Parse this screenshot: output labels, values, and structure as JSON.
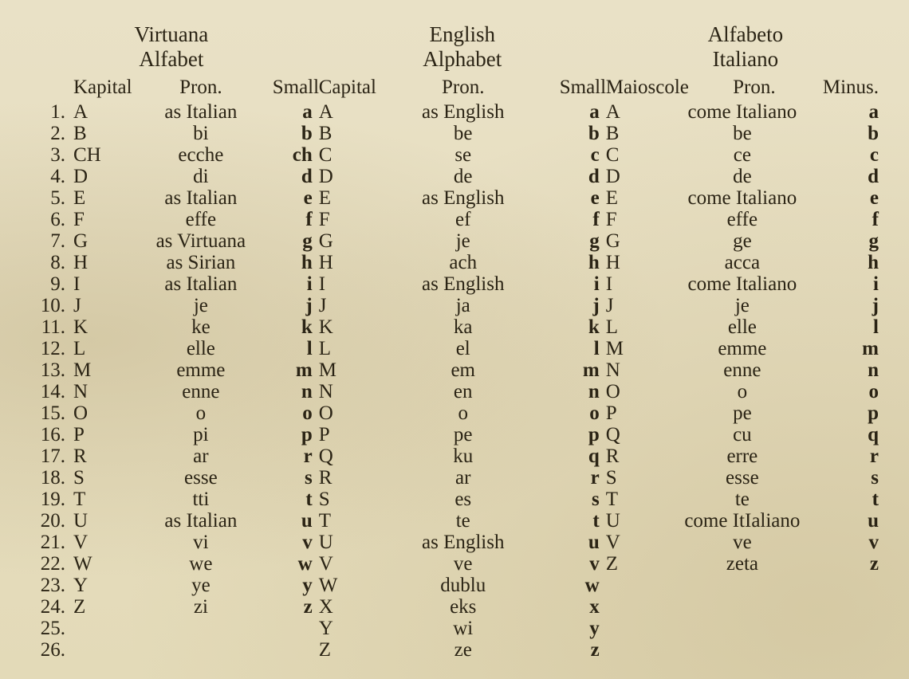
{
  "colors": {
    "background": "#e8e0c4",
    "text": "#2b2415"
  },
  "typography": {
    "family": "Times New Roman",
    "title_size_pt": 20,
    "body_size_pt": 18
  },
  "sections": {
    "virtuana": {
      "title_line1": "Virtuana",
      "title_line2": "Alfabet",
      "headers": {
        "cap": "Kapital",
        "pron": "Pron.",
        "small": "Small"
      },
      "rows": [
        {
          "n": "1.",
          "cap": "A",
          "pron": "as Italian",
          "small": "a"
        },
        {
          "n": "2.",
          "cap": "B",
          "pron": "bi",
          "small": "b"
        },
        {
          "n": "3.",
          "cap": "CH",
          "pron": "ecche",
          "small": "ch"
        },
        {
          "n": "4.",
          "cap": "D",
          "pron": "di",
          "small": "d"
        },
        {
          "n": "5.",
          "cap": "E",
          "pron": "as Italian",
          "small": "e"
        },
        {
          "n": "6.",
          "cap": "F",
          "pron": "effe",
          "small": "f"
        },
        {
          "n": "7.",
          "cap": "G",
          "pron": "as Virtuana",
          "small": "g"
        },
        {
          "n": "8.",
          "cap": "H",
          "pron": "as Sirian",
          "small": "h"
        },
        {
          "n": "9.",
          "cap": "I",
          "pron": "as Italian",
          "small": "i"
        },
        {
          "n": "10.",
          "cap": "J",
          "pron": "je",
          "small": "j"
        },
        {
          "n": "11.",
          "cap": "K",
          "pron": "ke",
          "small": "k"
        },
        {
          "n": "12.",
          "cap": "L",
          "pron": "elle",
          "small": "l"
        },
        {
          "n": "13.",
          "cap": "M",
          "pron": "emme",
          "small": "m"
        },
        {
          "n": "14.",
          "cap": "N",
          "pron": "enne",
          "small": "n"
        },
        {
          "n": "15.",
          "cap": "O",
          "pron": "o",
          "small": "o"
        },
        {
          "n": "16.",
          "cap": "P",
          "pron": "pi",
          "small": "p"
        },
        {
          "n": "17.",
          "cap": "R",
          "pron": "ar",
          "small": "r"
        },
        {
          "n": "18.",
          "cap": "S",
          "pron": "esse",
          "small": "s"
        },
        {
          "n": "19.",
          "cap": "T",
          "pron": "tti",
          "small": "t"
        },
        {
          "n": "20.",
          "cap": "U",
          "pron": "as Italian",
          "small": "u"
        },
        {
          "n": "21.",
          "cap": "V",
          "pron": "vi",
          "small": "v"
        },
        {
          "n": "22.",
          "cap": "W",
          "pron": "we",
          "small": "w"
        },
        {
          "n": "23.",
          "cap": "Y",
          "pron": "ye",
          "small": "y"
        },
        {
          "n": "24.",
          "cap": "Z",
          "pron": "zi",
          "small": "z"
        },
        {
          "n": "25.",
          "cap": "",
          "pron": "",
          "small": ""
        },
        {
          "n": "26.",
          "cap": "",
          "pron": "",
          "small": ""
        }
      ]
    },
    "english": {
      "title_line1": "English",
      "title_line2": "Alphabet",
      "headers": {
        "cap": "Capital",
        "pron": "Pron.",
        "small": "Small"
      },
      "rows": [
        {
          "cap": "A",
          "pron": "as English",
          "small": "a"
        },
        {
          "cap": "B",
          "pron": "be",
          "small": "b"
        },
        {
          "cap": "C",
          "pron": "se",
          "small": "c"
        },
        {
          "cap": "D",
          "pron": "de",
          "small": "d"
        },
        {
          "cap": "E",
          "pron": "as English",
          "small": "e"
        },
        {
          "cap": "F",
          "pron": "ef",
          "small": "f"
        },
        {
          "cap": "G",
          "pron": "je",
          "small": "g"
        },
        {
          "cap": "H",
          "pron": "ach",
          "small": "h"
        },
        {
          "cap": "I",
          "pron": "as English",
          "small": "i"
        },
        {
          "cap": "J",
          "pron": "ja",
          "small": "j"
        },
        {
          "cap": "K",
          "pron": "ka",
          "small": "k"
        },
        {
          "cap": "L",
          "pron": "el",
          "small": "l"
        },
        {
          "cap": "M",
          "pron": "em",
          "small": "m"
        },
        {
          "cap": "N",
          "pron": "en",
          "small": "n"
        },
        {
          "cap": "O",
          "pron": "o",
          "small": "o"
        },
        {
          "cap": "P",
          "pron": "pe",
          "small": "p"
        },
        {
          "cap": "Q",
          "pron": "ku",
          "small": "q"
        },
        {
          "cap": "R",
          "pron": "ar",
          "small": "r"
        },
        {
          "cap": "S",
          "pron": "es",
          "small": "s"
        },
        {
          "cap": "T",
          "pron": "te",
          "small": "t"
        },
        {
          "cap": "U",
          "pron": "as English",
          "small": "u"
        },
        {
          "cap": "V",
          "pron": "ve",
          "small": "v"
        },
        {
          "cap": "W",
          "pron": "dublu",
          "small": "w"
        },
        {
          "cap": "X",
          "pron": "eks",
          "small": "x"
        },
        {
          "cap": "Y",
          "pron": "wi",
          "small": "y"
        },
        {
          "cap": "Z",
          "pron": "ze",
          "small": "z"
        }
      ]
    },
    "italiano": {
      "title_line1": "Alfabeto",
      "title_line2": "Italiano",
      "headers": {
        "cap": "Maioscole",
        "pron": "Pron.",
        "small": "Minus."
      },
      "rows": [
        {
          "cap": "A",
          "pron": "come Italiano",
          "small": "a"
        },
        {
          "cap": "B",
          "pron": "be",
          "small": "b"
        },
        {
          "cap": "C",
          "pron": "ce",
          "small": "c"
        },
        {
          "cap": "D",
          "pron": "de",
          "small": "d"
        },
        {
          "cap": "E",
          "pron": "come Italiano",
          "small": "e"
        },
        {
          "cap": "F",
          "pron": "effe",
          "small": "f"
        },
        {
          "cap": "G",
          "pron": "ge",
          "small": "g"
        },
        {
          "cap": "H",
          "pron": "acca",
          "small": "h"
        },
        {
          "cap": "I",
          "pron": "come Italiano",
          "small": "i"
        },
        {
          "cap": "J",
          "pron": "je",
          "small": "j"
        },
        {
          "cap": "L",
          "pron": "elle",
          "small": "l"
        },
        {
          "cap": "M",
          "pron": "emme",
          "small": "m"
        },
        {
          "cap": "N",
          "pron": "enne",
          "small": "n"
        },
        {
          "cap": "O",
          "pron": "o",
          "small": "o"
        },
        {
          "cap": "P",
          "pron": "pe",
          "small": "p"
        },
        {
          "cap": "Q",
          "pron": "cu",
          "small": "q"
        },
        {
          "cap": "R",
          "pron": "erre",
          "small": "r"
        },
        {
          "cap": "S",
          "pron": "esse",
          "small": "s"
        },
        {
          "cap": "T",
          "pron": "te",
          "small": "t"
        },
        {
          "cap": "U",
          "pron": "come ItIaliano",
          "small": "u"
        },
        {
          "cap": "V",
          "pron": "ve",
          "small": "v"
        },
        {
          "cap": "Z",
          "pron": "zeta",
          "small": "z"
        }
      ]
    }
  }
}
